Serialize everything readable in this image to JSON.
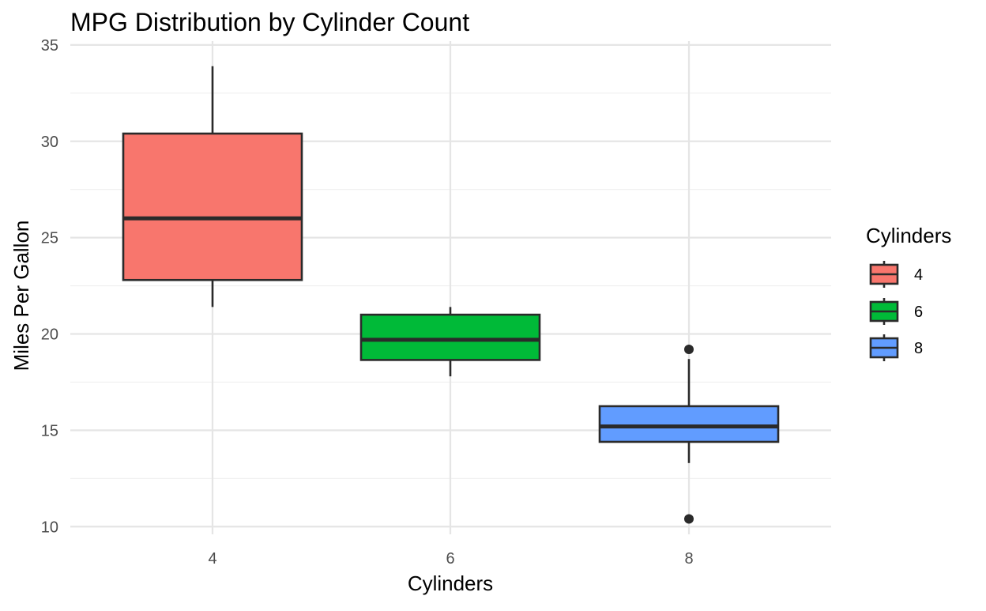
{
  "chart_data": {
    "type": "boxplot",
    "title": "MPG Distribution by Cylinder Count",
    "xlabel": "Cylinders",
    "ylabel": "Miles Per Gallon",
    "categories": [
      "4",
      "6",
      "8"
    ],
    "ylim": [
      9.6,
      35.2
    ],
    "yticks": [
      10,
      15,
      20,
      25,
      30,
      35
    ],
    "grid": true,
    "legend": {
      "title": "Cylinders",
      "position": "right",
      "entries": [
        "4",
        "6",
        "8"
      ]
    },
    "series": [
      {
        "name": "4",
        "color": "#f8766d",
        "whisker_low": 21.4,
        "q1": 22.8,
        "median": 26.0,
        "q3": 30.4,
        "whisker_high": 33.9,
        "outliers": []
      },
      {
        "name": "6",
        "color": "#00ba38",
        "whisker_low": 17.8,
        "q1": 18.65,
        "median": 19.7,
        "q3": 21.0,
        "whisker_high": 21.4,
        "outliers": []
      },
      {
        "name": "8",
        "color": "#619cff",
        "whisker_low": 13.3,
        "q1": 14.4,
        "median": 15.2,
        "q3": 16.25,
        "whisker_high": 18.7,
        "outliers": [
          19.2,
          10.4
        ]
      }
    ]
  }
}
